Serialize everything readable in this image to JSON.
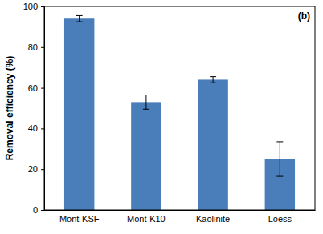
{
  "chart_data": {
    "type": "bar",
    "categories": [
      "Mont-KSF",
      "Mont-K10",
      "Kaolinite",
      "Loess"
    ],
    "values": [
      94,
      53,
      64,
      25
    ],
    "errors": [
      1.5,
      3.5,
      1.5,
      8.5
    ],
    "color": "#4a7ebb",
    "y_label": "Removal efficiency (%)",
    "annotation": "(b)",
    "ylim": [
      0,
      100
    ],
    "yticks": [
      0,
      20,
      40,
      60,
      80,
      100
    ],
    "grid": false
  }
}
